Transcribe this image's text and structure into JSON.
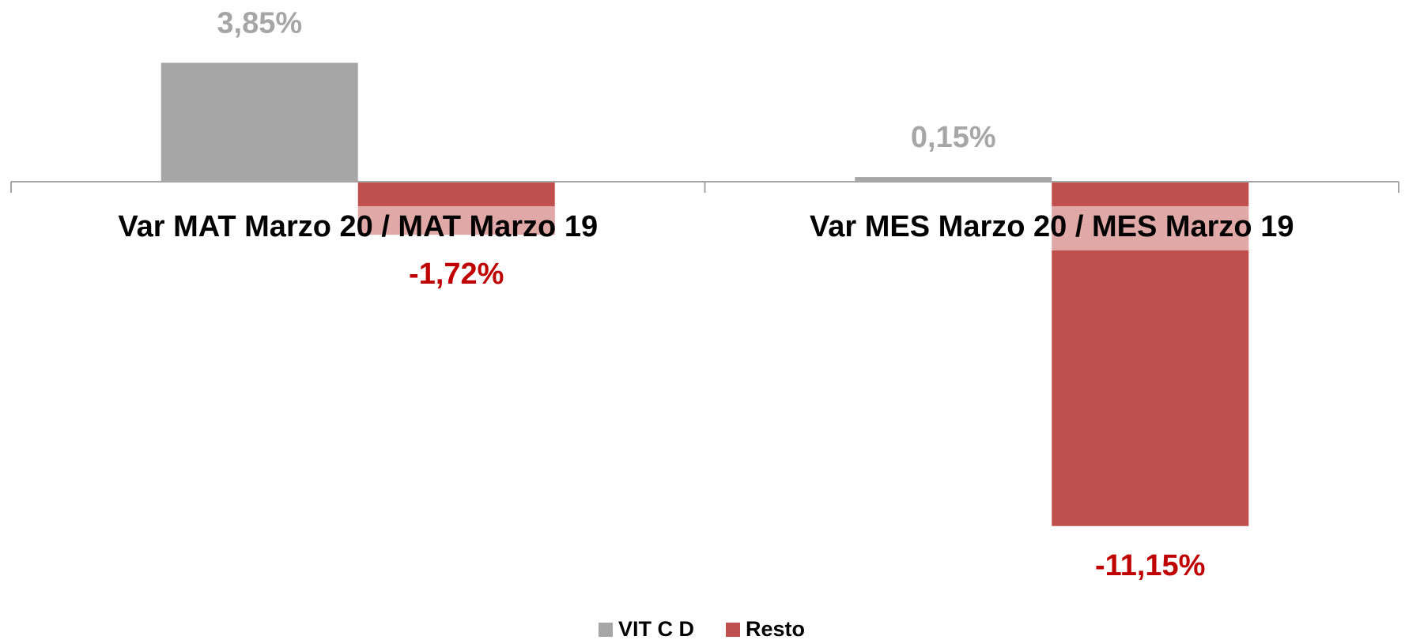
{
  "chart_data": {
    "type": "bar",
    "categories": [
      "Var MAT Marzo 20 / MAT Marzo 19",
      "Var MES Marzo 20 / MES Marzo 19"
    ],
    "series": [
      {
        "name": "VIT C D",
        "color": "#a6a6a6",
        "label_color": "#a6a6a6",
        "values": [
          3.85,
          0.15
        ],
        "value_labels": [
          "3,85%",
          "0,15%"
        ]
      },
      {
        "name": "Resto",
        "color": "#c0504d",
        "label_color": "#c00000",
        "values": [
          -1.72,
          -11.15
        ],
        "value_labels": [
          "-1,72%",
          "-11,15%"
        ]
      }
    ],
    "ylim": [
      -12,
      4
    ],
    "legend": "bottom"
  }
}
